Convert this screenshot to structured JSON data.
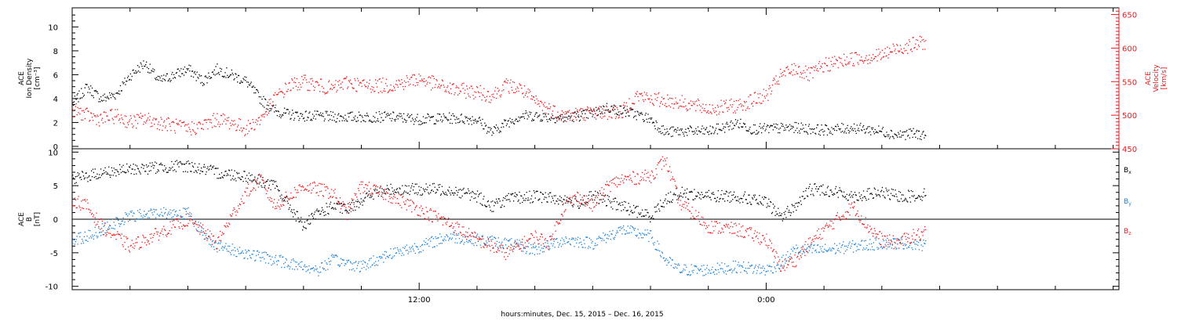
{
  "figure": {
    "xlabel": "hours:minutes, Dec. 15, 2015 – Dec. 16, 2015",
    "time_ticks": [
      {
        "hours": 12,
        "label": "12:00"
      },
      {
        "hours": 24,
        "label": "0:00"
      }
    ],
    "xlim_hours": [
      0,
      36.2
    ],
    "data_end_hours": 29.5
  },
  "colors": {
    "black": "#000000",
    "red": "#e8191b",
    "blue": "#1a7fd4"
  },
  "chart_data": [
    {
      "type": "scatter",
      "panel": "top",
      "ylabel_left": [
        "ACE",
        "Ion Density",
        "[cm⁻³]"
      ],
      "ylabel_right": [
        "ACE",
        "Velocity",
        "[km/s]"
      ],
      "ylim_left": [
        -0.2,
        11.6
      ],
      "ylim_right": [
        450,
        660
      ],
      "yticks_left": [
        0,
        2,
        4,
        6,
        8,
        10
      ],
      "yticks_right": [
        450,
        500,
        550,
        600,
        650
      ],
      "series": [
        {
          "axis": "left",
          "color": "black",
          "points": [
            [
              0,
              3.6
            ],
            [
              0.5,
              5.0
            ],
            [
              1,
              4.0
            ],
            [
              1.5,
              4.4
            ],
            [
              2,
              6.0
            ],
            [
              2.5,
              7.0
            ],
            [
              3,
              5.5
            ],
            [
              3.5,
              6.0
            ],
            [
              4,
              6.5
            ],
            [
              4.5,
              5.5
            ],
            [
              5,
              6.5
            ],
            [
              5.5,
              6.0
            ],
            [
              6,
              5.5
            ],
            [
              6.5,
              4.0
            ],
            [
              7,
              3.0
            ],
            [
              7.5,
              2.7
            ],
            [
              8,
              2.6
            ],
            [
              9,
              2.5
            ],
            [
              10,
              2.5
            ],
            [
              11,
              2.5
            ],
            [
              12,
              2.3
            ],
            [
              13,
              2.4
            ],
            [
              14,
              2.3
            ],
            [
              14.5,
              1.2
            ],
            [
              15,
              2.0
            ],
            [
              15.5,
              2.6
            ],
            [
              16,
              2.6
            ],
            [
              17,
              2.4
            ],
            [
              18,
              2.8
            ],
            [
              18.5,
              3.3
            ],
            [
              19,
              3.0
            ],
            [
              19.5,
              2.7
            ],
            [
              20,
              2.3
            ],
            [
              20.5,
              1.2
            ],
            [
              21,
              1.3
            ],
            [
              22,
              1.3
            ],
            [
              22.5,
              1.6
            ],
            [
              23,
              2.0
            ],
            [
              23.5,
              1.5
            ],
            [
              24,
              1.5
            ],
            [
              25,
              1.6
            ],
            [
              26,
              1.4
            ],
            [
              27,
              1.6
            ],
            [
              28,
              1.3
            ],
            [
              28.5,
              1.0
            ],
            [
              29,
              1.1
            ],
            [
              29.5,
              1.0
            ]
          ]
        },
        {
          "axis": "right",
          "color": "red",
          "points": [
            [
              0,
              510
            ],
            [
              0.5,
              500
            ],
            [
              1,
              495
            ],
            [
              1.5,
              500
            ],
            [
              2,
              490
            ],
            [
              2.5,
              495
            ],
            [
              3,
              490
            ],
            [
              3.5,
              485
            ],
            [
              4,
              480
            ],
            [
              4.5,
              485
            ],
            [
              5,
              495
            ],
            [
              5.5,
              490
            ],
            [
              6,
              480
            ],
            [
              6.5,
              495
            ],
            [
              7,
              525
            ],
            [
              7.5,
              545
            ],
            [
              8,
              550
            ],
            [
              8.5,
              545
            ],
            [
              9,
              540
            ],
            [
              9.5,
              550
            ],
            [
              10,
              545
            ],
            [
              11,
              545
            ],
            [
              12,
              555
            ],
            [
              13,
              540
            ],
            [
              14,
              535
            ],
            [
              14.5,
              530
            ],
            [
              15,
              545
            ],
            [
              15.5,
              540
            ],
            [
              16,
              520
            ],
            [
              17,
              500
            ],
            [
              18,
              505
            ],
            [
              19,
              505
            ],
            [
              19.5,
              530
            ],
            [
              20,
              525
            ],
            [
              21,
              520
            ],
            [
              22,
              510
            ],
            [
              23,
              515
            ],
            [
              24,
              530
            ],
            [
              24.5,
              560
            ],
            [
              25,
              570
            ],
            [
              25.5,
              560
            ],
            [
              26,
              575
            ],
            [
              27,
              585
            ],
            [
              28,
              590
            ],
            [
              28.5,
              600
            ],
            [
              29,
              605
            ],
            [
              29.5,
              610
            ]
          ]
        }
      ]
    },
    {
      "type": "scatter",
      "panel": "bottom",
      "ylabel_left": [
        "ACE",
        "B",
        "[nT]"
      ],
      "ylim": [
        -10.5,
        10.5
      ],
      "yticks": [
        -10,
        -5,
        0,
        5,
        10
      ],
      "zero_line": true,
      "legend": [
        {
          "label": "B",
          "sub": "x",
          "color": "black"
        },
        {
          "label": "B",
          "sub": "y",
          "color": "blue"
        },
        {
          "label": "B",
          "sub": "z",
          "color": "red"
        }
      ],
      "series": [
        {
          "name": "Bx",
          "color": "black",
          "points": [
            [
              0,
              6.0
            ],
            [
              1,
              7.0
            ],
            [
              2,
              7.5
            ],
            [
              3,
              7.8
            ],
            [
              4,
              8.0
            ],
            [
              5,
              7.0
            ],
            [
              6,
              6.5
            ],
            [
              7,
              5.0
            ],
            [
              7.5,
              2.0
            ],
            [
              8,
              -1.0
            ],
            [
              8.5,
              1.0
            ],
            [
              9,
              2.0
            ],
            [
              9.5,
              1.5
            ],
            [
              10,
              3.0
            ],
            [
              10.5,
              4.0
            ],
            [
              11,
              4.5
            ],
            [
              12,
              4.5
            ],
            [
              13,
              4.5
            ],
            [
              14,
              3.5
            ],
            [
              14.5,
              2.0
            ],
            [
              15,
              3.0
            ],
            [
              16,
              3.5
            ],
            [
              17,
              3.0
            ],
            [
              17.5,
              2.5
            ],
            [
              18,
              3.5
            ],
            [
              19,
              2.0
            ],
            [
              20,
              0.5
            ],
            [
              20.5,
              3.0
            ],
            [
              21,
              4.0
            ],
            [
              22,
              3.5
            ],
            [
              23,
              3.5
            ],
            [
              24,
              2.5
            ],
            [
              24.5,
              0.5
            ],
            [
              25,
              2.0
            ],
            [
              25.5,
              4.5
            ],
            [
              26,
              4.5
            ],
            [
              27,
              3.5
            ],
            [
              28,
              4.0
            ],
            [
              28.5,
              3.5
            ],
            [
              29,
              3.5
            ],
            [
              29.5,
              3.8
            ]
          ]
        },
        {
          "name": "By",
          "color": "blue",
          "points": [
            [
              0,
              -3.0
            ],
            [
              0.5,
              -2.5
            ],
            [
              1,
              -1.5
            ],
            [
              2,
              0.5
            ],
            [
              3,
              1.0
            ],
            [
              4,
              1.0
            ],
            [
              4.5,
              -2.0
            ],
            [
              5,
              -4.0
            ],
            [
              6,
              -5.0
            ],
            [
              7,
              -6.0
            ],
            [
              8,
              -7.0
            ],
            [
              8.5,
              -7.5
            ],
            [
              9,
              -6.0
            ],
            [
              10,
              -7.0
            ],
            [
              11,
              -5.0
            ],
            [
              12,
              -4.0
            ],
            [
              13,
              -2.5
            ],
            [
              14,
              -3.0
            ],
            [
              15,
              -3.5
            ],
            [
              16,
              -4.5
            ],
            [
              17,
              -3.0
            ],
            [
              18,
              -3.5
            ],
            [
              19,
              -1.5
            ],
            [
              20,
              -2.5
            ],
            [
              20.5,
              -6.0
            ],
            [
              21,
              -7.5
            ],
            [
              22,
              -7.5
            ],
            [
              23,
              -7.0
            ],
            [
              24,
              -7.5
            ],
            [
              24.5,
              -6.5
            ],
            [
              25,
              -4.5
            ],
            [
              26,
              -4.5
            ],
            [
              27,
              -4.0
            ],
            [
              28,
              -3.5
            ],
            [
              29,
              -3.5
            ],
            [
              29.5,
              -4.0
            ]
          ]
        },
        {
          "name": "Bz",
          "color": "red",
          "points": [
            [
              0,
              3.0
            ],
            [
              0.5,
              2.0
            ],
            [
              1,
              -1.0
            ],
            [
              1.5,
              -2.5
            ],
            [
              2,
              -4.0
            ],
            [
              2.5,
              -3.0
            ],
            [
              3,
              -2.0
            ],
            [
              4,
              0.0
            ],
            [
              5,
              -3.5
            ],
            [
              5.5,
              0.5
            ],
            [
              6,
              4.0
            ],
            [
              6.5,
              6.0
            ],
            [
              7,
              2.0
            ],
            [
              7.5,
              3.5
            ],
            [
              8,
              5.0
            ],
            [
              9,
              4.0
            ],
            [
              9.5,
              1.0
            ],
            [
              10,
              5.0
            ],
            [
              11,
              3.5
            ],
            [
              12,
              1.5
            ],
            [
              13,
              -0.5
            ],
            [
              14,
              -3.0
            ],
            [
              15,
              -5.0
            ],
            [
              16,
              -2.5
            ],
            [
              16.5,
              -3.5
            ],
            [
              17,
              2.0
            ],
            [
              17.5,
              3.5
            ],
            [
              18,
              2.0
            ],
            [
              18.5,
              5.0
            ],
            [
              19,
              6.0
            ],
            [
              20,
              6.5
            ],
            [
              20.5,
              9.0
            ],
            [
              21,
              2.5
            ],
            [
              22,
              -1.0
            ],
            [
              23,
              -1.5
            ],
            [
              24,
              -3.0
            ],
            [
              24.5,
              -7.0
            ],
            [
              25,
              -6.0
            ],
            [
              25.5,
              -3.5
            ],
            [
              26,
              -1.5
            ],
            [
              27,
              2.0
            ],
            [
              27.5,
              -1.0
            ],
            [
              28,
              -3.0
            ],
            [
              28.5,
              -3.5
            ],
            [
              29,
              -2.5
            ],
            [
              29.5,
              -2.0
            ]
          ]
        }
      ]
    }
  ]
}
